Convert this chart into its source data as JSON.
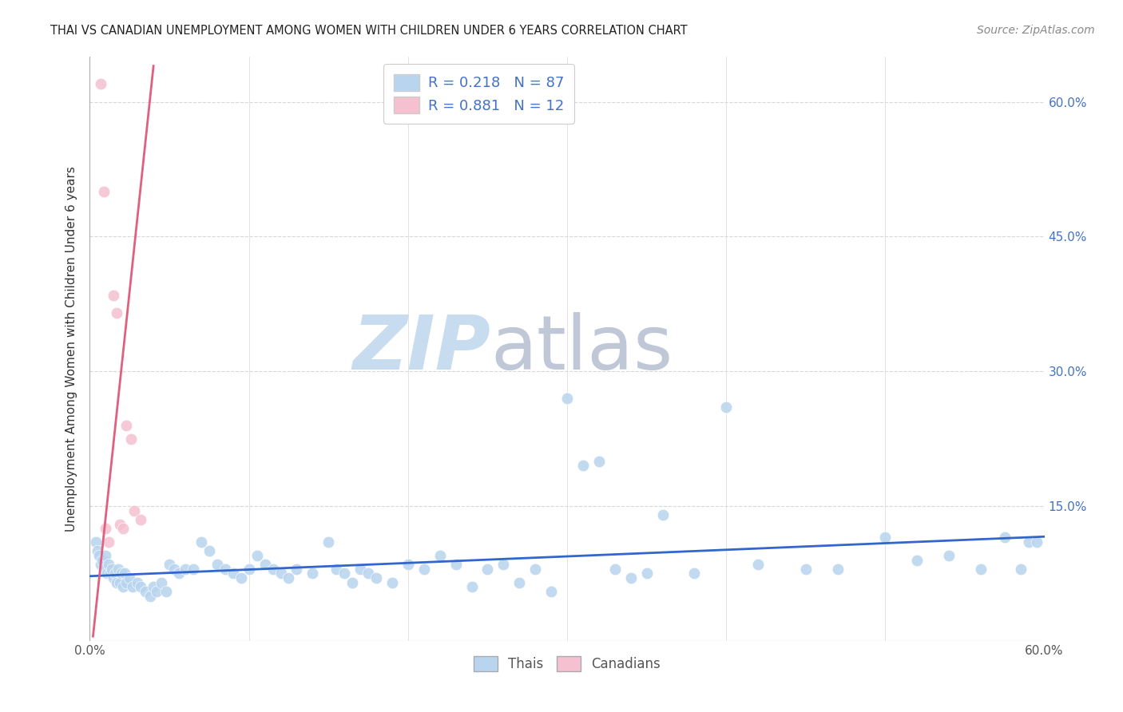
{
  "title": "THAI VS CANADIAN UNEMPLOYMENT AMONG WOMEN WITH CHILDREN UNDER 6 YEARS CORRELATION CHART",
  "source": "Source: ZipAtlas.com",
  "ylabel": "Unemployment Among Women with Children Under 6 years",
  "xlim": [
    0.0,
    0.6
  ],
  "ylim": [
    0.0,
    0.65
  ],
  "xticks": [
    0.0,
    0.1,
    0.2,
    0.3,
    0.4,
    0.5,
    0.6
  ],
  "yticks": [
    0.15,
    0.3,
    0.45,
    0.6
  ],
  "ytick_labels": [
    "15.0%",
    "30.0%",
    "45.0%",
    "60.0%"
  ],
  "xtick_labels": [
    "0.0%",
    "",
    "",
    "",
    "",
    "",
    "60.0%"
  ],
  "legend1_label1": "R = 0.218   N = 87",
  "legend1_label2": "R = 0.881   N = 12",
  "legend2_label1": "Thais",
  "legend2_label2": "Canadians",
  "thai_scatter_x": [
    0.004,
    0.005,
    0.006,
    0.007,
    0.008,
    0.009,
    0.01,
    0.011,
    0.012,
    0.013,
    0.014,
    0.015,
    0.016,
    0.017,
    0.018,
    0.019,
    0.02,
    0.021,
    0.022,
    0.023,
    0.025,
    0.027,
    0.03,
    0.032,
    0.035,
    0.038,
    0.04,
    0.042,
    0.045,
    0.048,
    0.05,
    0.053,
    0.056,
    0.06,
    0.065,
    0.07,
    0.075,
    0.08,
    0.085,
    0.09,
    0.095,
    0.1,
    0.105,
    0.11,
    0.115,
    0.12,
    0.125,
    0.13,
    0.14,
    0.15,
    0.155,
    0.16,
    0.165,
    0.17,
    0.175,
    0.18,
    0.19,
    0.2,
    0.21,
    0.22,
    0.23,
    0.24,
    0.25,
    0.26,
    0.27,
    0.28,
    0.29,
    0.3,
    0.31,
    0.32,
    0.33,
    0.34,
    0.35,
    0.36,
    0.38,
    0.4,
    0.42,
    0.45,
    0.47,
    0.5,
    0.52,
    0.54,
    0.56,
    0.575,
    0.585,
    0.59,
    0.595
  ],
  "thai_scatter_y": [
    0.11,
    0.1,
    0.095,
    0.085,
    0.09,
    0.08,
    0.095,
    0.075,
    0.085,
    0.075,
    0.08,
    0.07,
    0.075,
    0.065,
    0.08,
    0.065,
    0.075,
    0.06,
    0.075,
    0.065,
    0.07,
    0.06,
    0.065,
    0.06,
    0.055,
    0.05,
    0.06,
    0.055,
    0.065,
    0.055,
    0.085,
    0.08,
    0.075,
    0.08,
    0.08,
    0.11,
    0.1,
    0.085,
    0.08,
    0.075,
    0.07,
    0.08,
    0.095,
    0.085,
    0.08,
    0.075,
    0.07,
    0.08,
    0.075,
    0.11,
    0.08,
    0.075,
    0.065,
    0.08,
    0.075,
    0.07,
    0.065,
    0.085,
    0.08,
    0.095,
    0.085,
    0.06,
    0.08,
    0.085,
    0.065,
    0.08,
    0.055,
    0.27,
    0.195,
    0.2,
    0.08,
    0.07,
    0.075,
    0.14,
    0.075,
    0.26,
    0.085,
    0.08,
    0.08,
    0.115,
    0.09,
    0.095,
    0.08,
    0.115,
    0.08,
    0.11,
    0.11
  ],
  "canadian_scatter_x": [
    0.007,
    0.009,
    0.01,
    0.012,
    0.015,
    0.017,
    0.019,
    0.021,
    0.023,
    0.026,
    0.028,
    0.032
  ],
  "canadian_scatter_y": [
    0.62,
    0.5,
    0.125,
    0.11,
    0.385,
    0.365,
    0.13,
    0.125,
    0.24,
    0.225,
    0.145,
    0.135
  ],
  "thai_line_x": [
    0.0,
    0.6
  ],
  "thai_line_y": [
    0.072,
    0.116
  ],
  "canadian_line_x": [
    0.002,
    0.04
  ],
  "canadian_line_y": [
    0.005,
    0.64
  ],
  "scatter_size": 110,
  "thai_color": "#b8d4ee",
  "thai_line_color": "#3366cc",
  "canadian_color": "#f5c0d0",
  "canadian_line_color": "#e06080",
  "background_color": "#ffffff",
  "grid_color": "#d8d8d8",
  "watermark_zip": "ZIP",
  "watermark_atlas": "atlas",
  "watermark_color_zip": "#c8dcf0",
  "watermark_color_atlas": "#c0c8d8"
}
